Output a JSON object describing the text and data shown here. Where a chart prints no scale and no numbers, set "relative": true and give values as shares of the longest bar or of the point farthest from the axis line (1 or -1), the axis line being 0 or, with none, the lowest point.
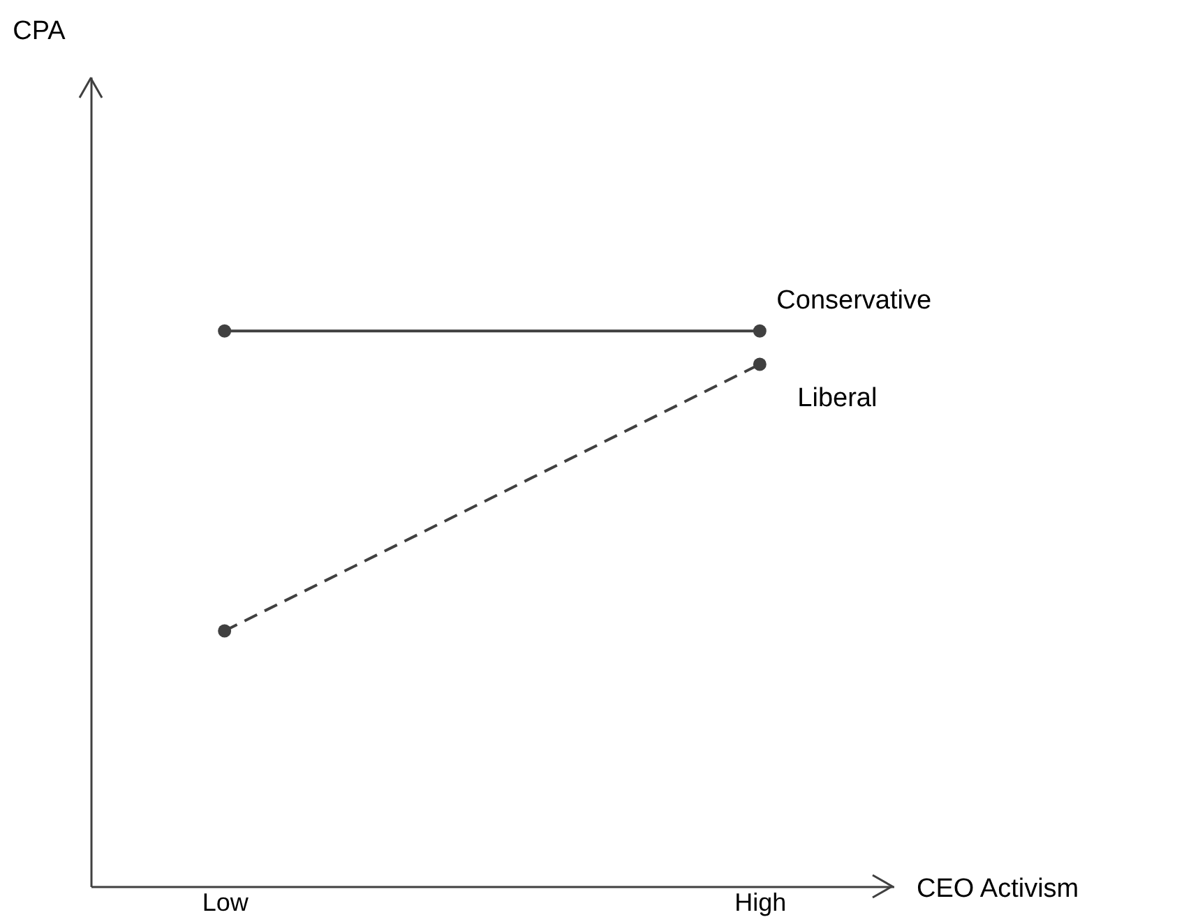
{
  "chart_data": {
    "type": "line",
    "xlabel": "CEO Activism",
    "annotations": [
      "CPA"
    ],
    "categories": [
      "Low",
      "High"
    ],
    "relative": true,
    "marker": "circle",
    "legend": false,
    "grid": false,
    "series": [
      {
        "name": "Conservative",
        "color": "#404040",
        "values": [
          1,
          1
        ],
        "line_style": "solid"
      },
      {
        "name": "Liberal",
        "color": "#404040",
        "values": [
          0.46,
          0.94
        ],
        "line_style": "dashed"
      }
    ]
  }
}
